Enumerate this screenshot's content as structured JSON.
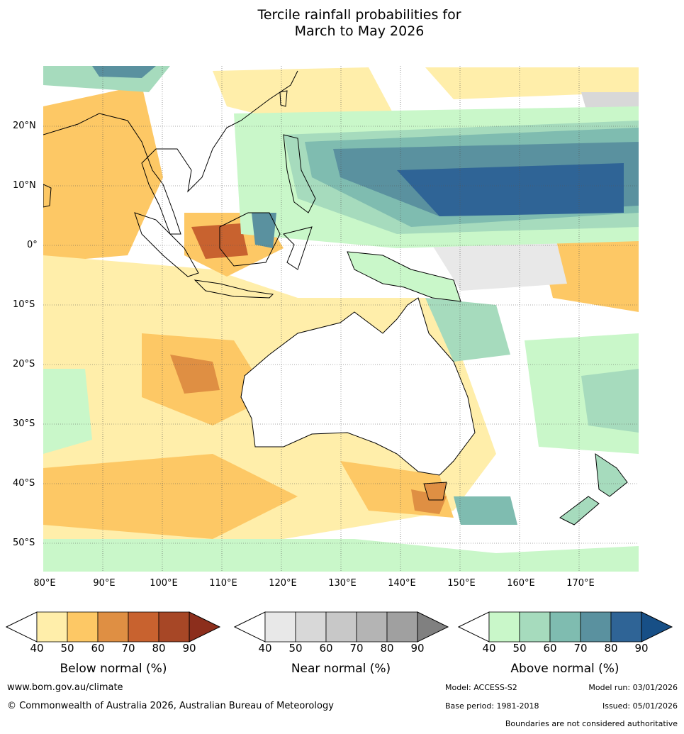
{
  "title_line1": "Tercile rainfall probabilities for",
  "title_line2": "March to May 2026",
  "latitudes": [
    "20°N",
    "10°N",
    "0°",
    "10°S",
    "20°S",
    "30°S",
    "40°S",
    "50°S"
  ],
  "longitudes": [
    "80°E",
    "90°E",
    "100°E",
    "110°E",
    "120°E",
    "130°E",
    "140°E",
    "150°E",
    "160°E",
    "170°E"
  ],
  "legends": [
    {
      "name": "below",
      "title": "Below normal (%)",
      "ticks": [
        "40",
        "50",
        "60",
        "70",
        "80",
        "90"
      ],
      "colors": [
        "#ffeeaa",
        "#fdc865",
        "#df8f43",
        "#c8622f",
        "#a74726",
        "#8c2e1c"
      ]
    },
    {
      "name": "near",
      "title": "Near normal (%)",
      "ticks": [
        "40",
        "50",
        "60",
        "70",
        "80",
        "90"
      ],
      "colors": [
        "#e8e8e8",
        "#d8d8d8",
        "#c8c8c8",
        "#b4b4b4",
        "#a0a0a0",
        "#808080"
      ]
    },
    {
      "name": "above",
      "title": "Above normal (%)",
      "ticks": [
        "40",
        "50",
        "60",
        "70",
        "80",
        "90"
      ],
      "colors": [
        "#c9f7c9",
        "#a6dbbd",
        "#7fbcb0",
        "#5a919f",
        "#2f6496",
        "#174f86"
      ]
    }
  ],
  "footer": {
    "url": "www.bom.gov.au/climate",
    "copyright": "© Commonwealth of Australia 2026, Australian Bureau of Meteorology",
    "model": "Model: ACCESS-S2",
    "model_run": "Model run: 03/01/2026",
    "base_period": "Base period: 1981-2018",
    "issued": "Issued: 05/01/2026",
    "disclaimer": "Boundaries are not considered authoritative"
  }
}
